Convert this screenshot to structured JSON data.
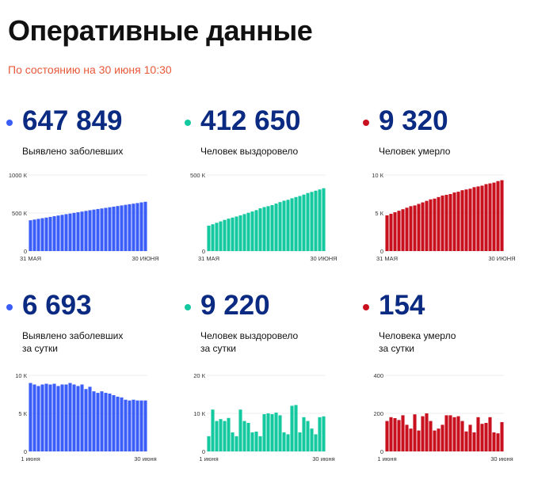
{
  "header": {
    "title": "Оперативные данные",
    "subtitle": "По состоянию на 30 июня 10:30"
  },
  "colors": {
    "blue": "#3a5ef7",
    "green": "#14c8a0",
    "red": "#c8101e",
    "title": "#0b2a82",
    "subtitle": "#e8593a"
  },
  "chart_data": [
    {
      "type": "bar",
      "value_text": "647 849",
      "label_lines": [
        "Выявлено заболевших"
      ],
      "color": "#3a5ef7",
      "x_tick_labels": [
        "31 МАЯ",
        "30 ИЮНЯ"
      ],
      "y_tick_labels": [
        "1000 К",
        "500 К",
        "0"
      ],
      "ylim": [
        0,
        1000
      ],
      "values": [
        405,
        414,
        423,
        432,
        440,
        449,
        458,
        467,
        476,
        485,
        493,
        502,
        510,
        519,
        528,
        537,
        545,
        553,
        560,
        568,
        576,
        584,
        592,
        600,
        608,
        616,
        623,
        631,
        640,
        648
      ]
    },
    {
      "type": "bar",
      "value_text": "412 650",
      "label_lines": [
        "Человек выздоровело"
      ],
      "color": "#14c8a0",
      "x_tick_labels": [
        "31 МАЯ",
        "30 ИЮНЯ"
      ],
      "y_tick_labels": [
        "500 К",
        "0"
      ],
      "ylim": [
        0,
        500
      ],
      "values": [
        167,
        176,
        186,
        195,
        205,
        213,
        220,
        227,
        235,
        243,
        252,
        260,
        269,
        281,
        289,
        295,
        302,
        312,
        322,
        331,
        337,
        347,
        355,
        362,
        371,
        382,
        389,
        397,
        405,
        413
      ]
    },
    {
      "type": "bar",
      "value_text": "9 320",
      "label_lines": [
        "Человек умерло"
      ],
      "color": "#c8101e",
      "x_tick_labels": [
        "31 МАЯ",
        "30 ИЮНЯ"
      ],
      "y_tick_labels": [
        "10 К",
        "5 К",
        "0"
      ],
      "ylim": [
        0,
        10
      ],
      "values": [
        4.7,
        4.9,
        5.1,
        5.3,
        5.5,
        5.7,
        5.9,
        6.0,
        6.2,
        6.4,
        6.6,
        6.8,
        6.9,
        7.1,
        7.3,
        7.4,
        7.5,
        7.7,
        7.8,
        8.0,
        8.1,
        8.2,
        8.4,
        8.5,
        8.6,
        8.8,
        8.9,
        9.0,
        9.2,
        9.32
      ]
    },
    {
      "type": "bar",
      "value_text": "6 693",
      "label_lines": [
        "Выявлено заболевших",
        "за сутки"
      ],
      "color": "#3a5ef7",
      "x_tick_labels": [
        "1 июня",
        "30 июня"
      ],
      "y_tick_labels": [
        "10 К",
        "5 К",
        "0"
      ],
      "ylim": [
        0,
        10
      ],
      "values": [
        9.0,
        8.8,
        8.6,
        8.8,
        8.9,
        8.8,
        8.9,
        8.6,
        8.8,
        8.8,
        9.0,
        8.8,
        8.6,
        8.8,
        8.2,
        8.5,
        7.9,
        7.7,
        7.9,
        7.7,
        7.6,
        7.4,
        7.2,
        7.1,
        6.8,
        6.7,
        6.8,
        6.7,
        6.7,
        6.7
      ]
    },
    {
      "type": "bar",
      "value_text": "9 220",
      "label_lines": [
        "Человек выздоровело",
        "за сутки"
      ],
      "color": "#14c8a0",
      "x_tick_labels": [
        "1 июня",
        "30 июня"
      ],
      "y_tick_labels": [
        "20 К",
        "10 К",
        "0"
      ],
      "ylim": [
        0,
        20
      ],
      "values": [
        4.0,
        11.0,
        8.0,
        8.5,
        8.0,
        8.8,
        5.0,
        4.0,
        11.0,
        8.0,
        7.5,
        5.0,
        5.2,
        4.0,
        9.8,
        10.0,
        9.8,
        10.2,
        9.5,
        5.0,
        4.5,
        12.0,
        12.2,
        5.0,
        9.0,
        8.0,
        6.0,
        4.5,
        9.0,
        9.22
      ]
    },
    {
      "type": "bar",
      "value_text": "154",
      "label_lines": [
        "Человека умерло",
        "за сутки"
      ],
      "color": "#c8101e",
      "x_tick_labels": [
        "1 июня",
        "30 июня"
      ],
      "y_tick_labels": [
        "400",
        "200",
        "0"
      ],
      "ylim": [
        0,
        400
      ],
      "values": [
        160,
        180,
        175,
        165,
        190,
        140,
        120,
        195,
        110,
        185,
        200,
        160,
        110,
        120,
        140,
        190,
        190,
        180,
        185,
        160,
        105,
        140,
        100,
        180,
        145,
        150,
        180,
        100,
        95,
        154
      ]
    }
  ]
}
